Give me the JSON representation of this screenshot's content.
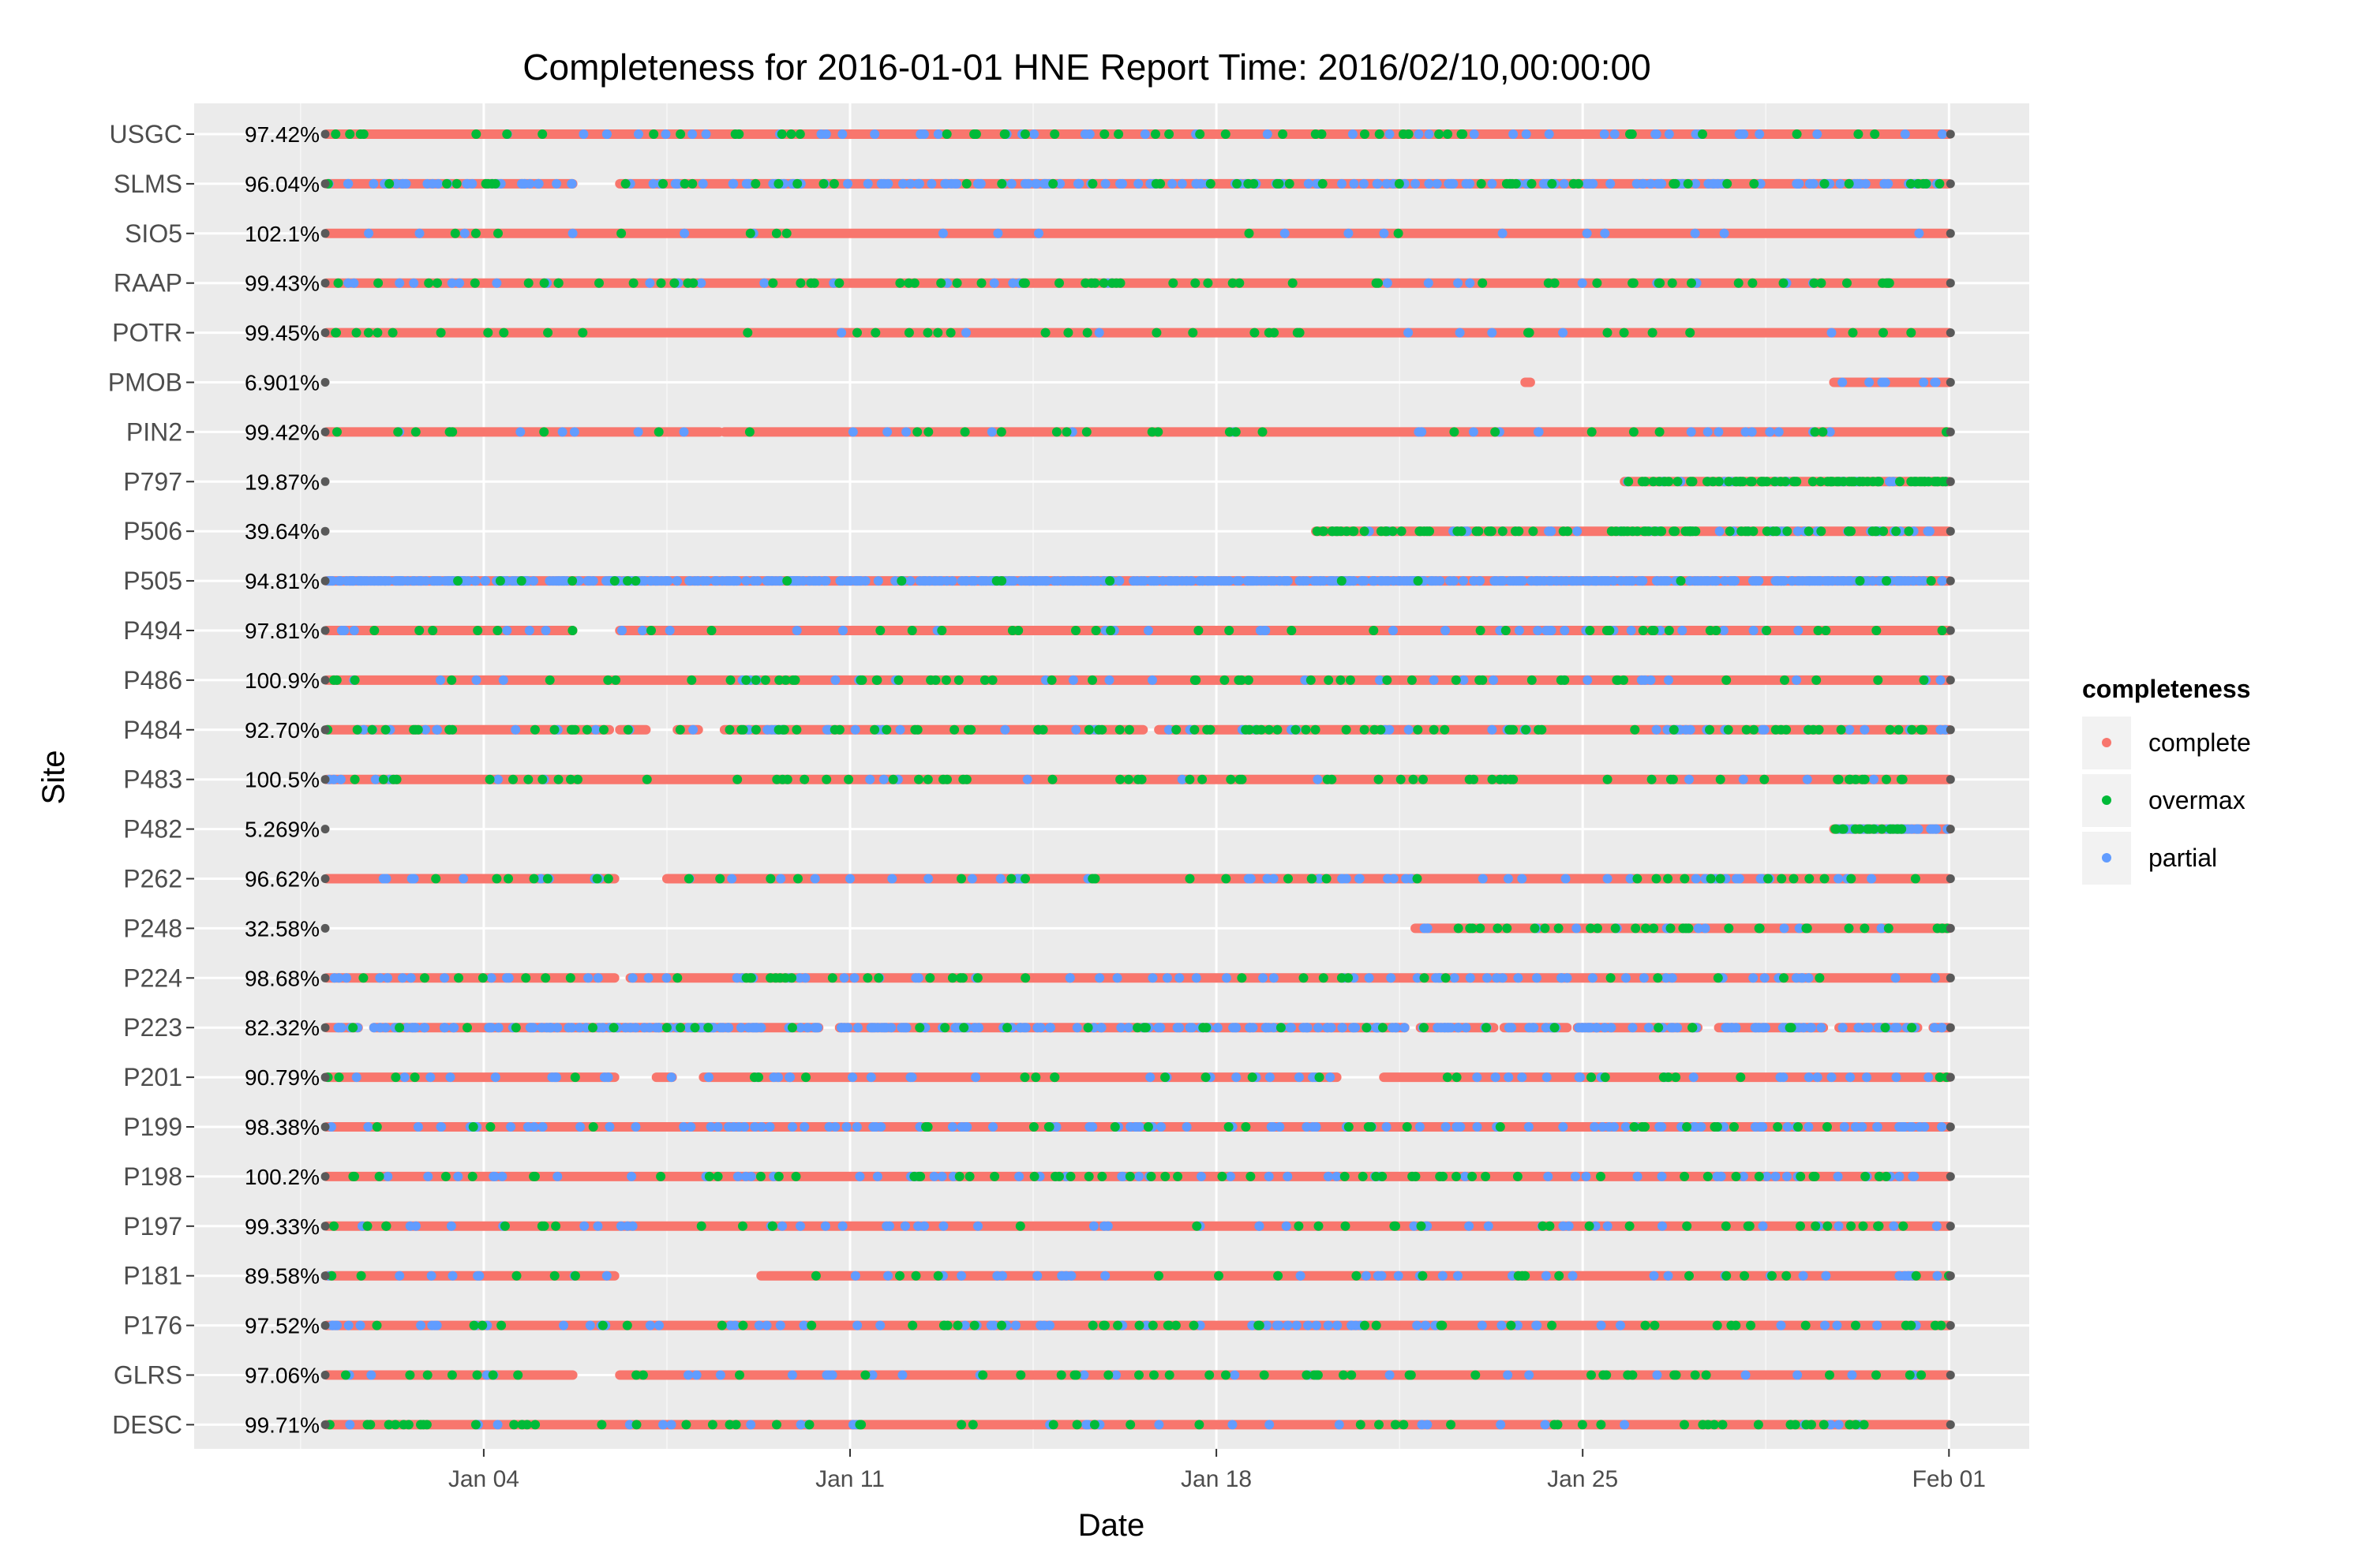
{
  "chart_data": {
    "type": "scatter",
    "title": "Completeness for  2016-01-01 HNE  Report Time:  2016/02/10,00:00:00",
    "xlabel": "Date",
    "ylabel": "Site",
    "x_ticks": [
      "Jan 04",
      "Jan 11",
      "Jan 18",
      "Jan 25",
      "Feb 01"
    ],
    "x_range": [
      "2016-01-01",
      "2016-02-01"
    ],
    "grid": true,
    "legend": {
      "title": "completeness",
      "position": "right",
      "entries": [
        {
          "label": "complete",
          "color": "#F8766D"
        },
        {
          "label": "overmax",
          "color": "#00BA38"
        },
        {
          "label": "partial",
          "color": "#619CFF"
        }
      ]
    },
    "colors": {
      "panel": "#EBEBEB",
      "grid": "#FFFFFF",
      "endpoint": "#595959"
    },
    "sites": [
      {
        "name": "USGC",
        "completeness": "97.42%",
        "coverage": [
          [
            0,
            31
          ]
        ],
        "partial_share": 0.05,
        "overmax_share": 0.05
      },
      {
        "name": "SLMS",
        "completeness": "96.04%",
        "coverage": [
          [
            0,
            4.7
          ],
          [
            5.6,
            31
          ]
        ],
        "partial_share": 0.22,
        "overmax_share": 0.06
      },
      {
        "name": "SIO5",
        "completeness": "102.1%",
        "coverage": [
          [
            0,
            31
          ]
        ],
        "partial_share": 0.02,
        "overmax_share": 0.01
      },
      {
        "name": "RAAP",
        "completeness": "99.43%",
        "coverage": [
          [
            0,
            31
          ]
        ],
        "partial_share": 0.03,
        "overmax_share": 0.07
      },
      {
        "name": "POTR",
        "completeness": "99.45%",
        "coverage": [
          [
            0,
            31
          ]
        ],
        "partial_share": 0.01,
        "overmax_share": 0.04
      },
      {
        "name": "PMOB",
        "completeness": "6.901%",
        "coverage": [
          [
            22.9,
            23.0
          ],
          [
            28.8,
            31
          ]
        ],
        "partial_share": 0.12,
        "overmax_share": 0.0
      },
      {
        "name": "PIN2",
        "completeness": "99.42%",
        "coverage": [
          [
            0,
            7.5
          ],
          [
            7.6,
            31
          ]
        ],
        "partial_share": 0.03,
        "overmax_share": 0.03
      },
      {
        "name": "P797",
        "completeness": "19.87%",
        "coverage": [
          [
            24.8,
            31
          ]
        ],
        "partial_share": 0.1,
        "overmax_share": 0.35
      },
      {
        "name": "P506",
        "completeness": "39.64%",
        "coverage": [
          [
            18.9,
            31
          ]
        ],
        "partial_share": 0.12,
        "overmax_share": 0.22
      },
      {
        "name": "P505",
        "completeness": "94.81%",
        "coverage": [
          [
            0,
            31
          ]
        ],
        "partial_share": 0.6,
        "overmax_share": 0.02
      },
      {
        "name": "P494",
        "completeness": "97.81%",
        "coverage": [
          [
            0,
            4.7
          ],
          [
            5.6,
            31
          ]
        ],
        "partial_share": 0.04,
        "overmax_share": 0.04
      },
      {
        "name": "P486",
        "completeness": "100.9%",
        "coverage": [
          [
            0,
            31
          ]
        ],
        "partial_share": 0.03,
        "overmax_share": 0.06
      },
      {
        "name": "P484",
        "completeness": "92.70%",
        "coverage": [
          [
            0,
            5.4
          ],
          [
            5.6,
            6.1
          ],
          [
            6.7,
            7.1
          ],
          [
            7.6,
            15.6
          ],
          [
            15.9,
            31
          ]
        ],
        "partial_share": 0.07,
        "overmax_share": 0.1
      },
      {
        "name": "P483",
        "completeness": "100.5%",
        "coverage": [
          [
            0,
            31
          ]
        ],
        "partial_share": 0.02,
        "overmax_share": 0.07
      },
      {
        "name": "P482",
        "completeness": "5.269%",
        "coverage": [
          [
            28.8,
            31
          ]
        ],
        "partial_share": 0.45,
        "overmax_share": 0.25
      },
      {
        "name": "P262",
        "completeness": "96.62%",
        "coverage": [
          [
            0,
            5.5
          ],
          [
            6.5,
            31
          ]
        ],
        "partial_share": 0.06,
        "overmax_share": 0.04
      },
      {
        "name": "P248",
        "completeness": "32.58%",
        "coverage": [
          [
            20.8,
            31
          ]
        ],
        "partial_share": 0.04,
        "overmax_share": 0.1
      },
      {
        "name": "P224",
        "completeness": "98.68%",
        "coverage": [
          [
            0,
            5.5
          ],
          [
            5.8,
            31
          ]
        ],
        "partial_share": 0.08,
        "overmax_share": 0.04
      },
      {
        "name": "P223",
        "completeness": "82.32%",
        "coverage": [
          [
            0,
            0.6
          ],
          [
            0.9,
            9.4
          ],
          [
            9.8,
            20.6
          ],
          [
            20.9,
            22.3
          ],
          [
            22.5,
            23.7
          ],
          [
            23.9,
            26.2
          ],
          [
            26.6,
            28.6
          ],
          [
            28.9,
            30.4
          ],
          [
            30.7,
            31
          ]
        ],
        "partial_share": 0.3,
        "overmax_share": 0.04
      },
      {
        "name": "P201",
        "completeness": "90.79%",
        "coverage": [
          [
            0,
            5.5
          ],
          [
            6.3,
            6.6
          ],
          [
            7.2,
            19.3
          ],
          [
            20.2,
            31
          ]
        ],
        "partial_share": 0.06,
        "overmax_share": 0.03
      },
      {
        "name": "P199",
        "completeness": "98.38%",
        "coverage": [
          [
            0,
            31
          ]
        ],
        "partial_share": 0.12,
        "overmax_share": 0.03
      },
      {
        "name": "P198",
        "completeness": "100.2%",
        "coverage": [
          [
            0,
            31
          ]
        ],
        "partial_share": 0.06,
        "overmax_share": 0.06
      },
      {
        "name": "P197",
        "completeness": "99.33%",
        "coverage": [
          [
            0,
            31
          ]
        ],
        "partial_share": 0.05,
        "overmax_share": 0.04
      },
      {
        "name": "P181",
        "completeness": "89.58%",
        "coverage": [
          [
            0,
            5.5
          ],
          [
            8.3,
            31
          ]
        ],
        "partial_share": 0.05,
        "overmax_share": 0.03
      },
      {
        "name": "P176",
        "completeness": "97.52%",
        "coverage": [
          [
            0,
            31
          ]
        ],
        "partial_share": 0.08,
        "overmax_share": 0.05
      },
      {
        "name": "GLRS",
        "completeness": "97.06%",
        "coverage": [
          [
            0,
            4.7
          ],
          [
            5.6,
            31
          ]
        ],
        "partial_share": 0.03,
        "overmax_share": 0.05
      },
      {
        "name": "DESC",
        "completeness": "99.71%",
        "coverage": [
          [
            0,
            31
          ]
        ],
        "partial_share": 0.03,
        "overmax_share": 0.06
      }
    ]
  }
}
